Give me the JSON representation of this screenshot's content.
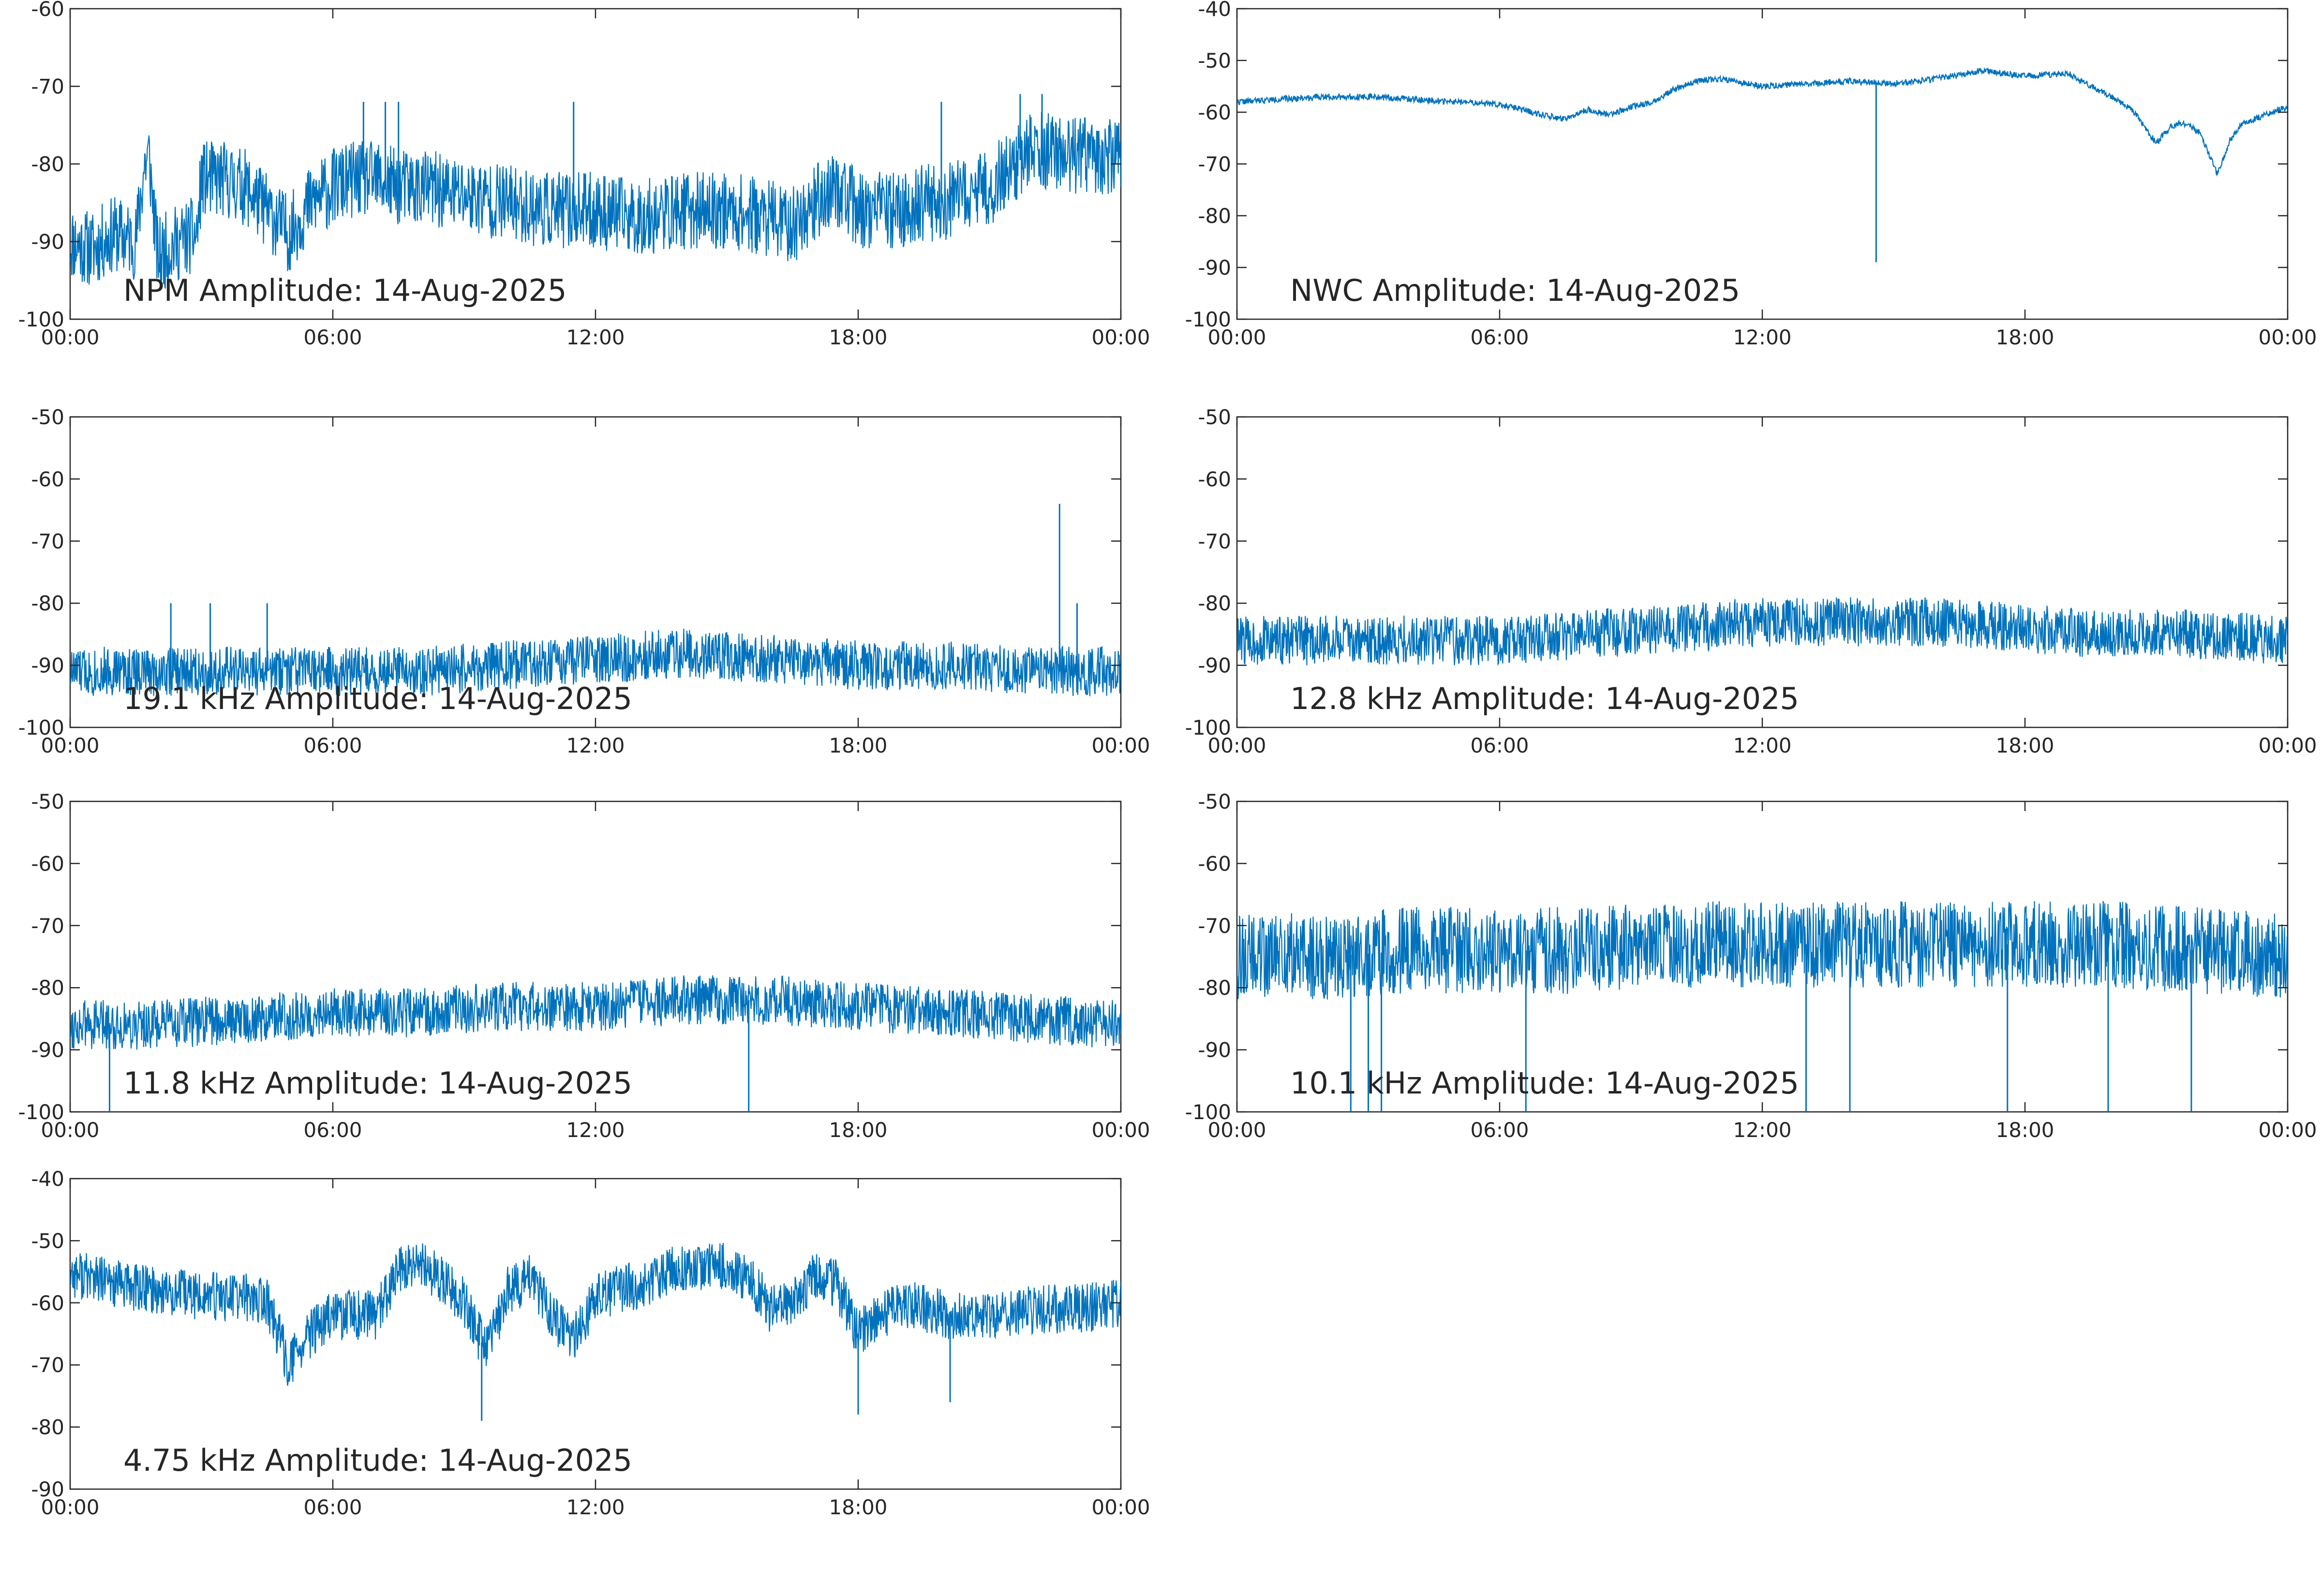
{
  "figure": {
    "background": "#ffffff",
    "line_color": "#0072BD",
    "axis_color": "#262626"
  },
  "chart_data": [
    {
      "type": "line",
      "title": "NPM Amplitude: 14-Aug-2025",
      "xlim": [
        "00:00",
        "24:00"
      ],
      "xticks": [
        "00:00",
        "06:00",
        "12:00",
        "18:00",
        "00:00"
      ],
      "ylim": [
        -100,
        -60
      ],
      "yticks": [
        -60,
        -70,
        -80,
        -90,
        -100
      ],
      "series": [
        {
          "x": [
            0,
            0.5,
            1.0,
            1.5,
            1.7,
            1.8,
            2.0,
            2.2,
            2.5,
            2.9,
            3.0,
            3.5,
            4.0,
            4.5,
            5.0,
            5.5,
            6.0,
            6.5,
            7.0,
            7.5,
            8.0,
            9.0,
            10.0,
            11.0,
            12.0,
            13.0,
            14.0,
            15.0,
            16.0,
            16.5,
            17.0,
            17.5,
            18.0,
            18.5,
            19.0,
            19.5,
            20.0,
            20.5,
            21.0,
            22.0,
            23.0,
            24.0
          ],
          "y": [
            -90,
            -91,
            -89,
            -90,
            -80,
            -79,
            -92,
            -91,
            -90,
            -89,
            -82,
            -82,
            -83,
            -86,
            -89,
            -85,
            -83,
            -82,
            -82,
            -83,
            -83,
            -84,
            -85,
            -86,
            -86,
            -87,
            -86,
            -86,
            -87,
            -88,
            -85,
            -83,
            -86,
            -86,
            -86,
            -85,
            -85,
            -84,
            -83,
            -78,
            -79,
            -79
          ],
          "spread": 5,
          "spike_x": [
            6.7,
            7.2,
            7.5,
            11.5,
            19.9,
            21.7,
            22.2
          ],
          "spike_y": [
            -72,
            -72,
            -72,
            -72,
            -72,
            -71,
            -71
          ],
          "seed": 11
        }
      ]
    },
    {
      "type": "line",
      "title": "NWC Amplitude: 14-Aug-2025",
      "xlim": [
        "00:00",
        "24:00"
      ],
      "xticks": [
        "00:00",
        "06:00",
        "12:00",
        "18:00",
        "00:00"
      ],
      "ylim": [
        -100,
        -40
      ],
      "yticks": [
        -40,
        -50,
        -60,
        -70,
        -80,
        -90,
        -100
      ],
      "series": [
        {
          "x": [
            0,
            1,
            2,
            3,
            4,
            5,
            6,
            6.5,
            7.0,
            7.5,
            8.0,
            8.5,
            9.0,
            9.5,
            10.0,
            10.5,
            11.0,
            12.0,
            13.0,
            14.0,
            15.0,
            16.0,
            17.0,
            18.0,
            19.0,
            19.5,
            20.0,
            20.5,
            21.0,
            21.3,
            21.6,
            22.0,
            22.4,
            22.7,
            23.0,
            23.5,
            24.0
          ],
          "y": [
            -58,
            -57.5,
            -57,
            -57,
            -57.5,
            -58,
            -58.5,
            -59.5,
            -60.5,
            -61.5,
            -59.5,
            -60.5,
            -59,
            -58,
            -55.5,
            -54,
            -53.5,
            -55,
            -54.5,
            -54,
            -54.5,
            -53.5,
            -52,
            -53,
            -52.5,
            -55,
            -57,
            -60,
            -66,
            -63,
            -62,
            -64,
            -72,
            -65,
            -62,
            -60.5,
            -59
          ],
          "spread": 0.6,
          "spike_x": [
            14.6
          ],
          "spike_y": [
            -89
          ],
          "seed": 22
        }
      ]
    },
    {
      "type": "line",
      "title": "19.1 kHz Amplitude: 14-Aug-2025",
      "xlim": [
        "00:00",
        "24:00"
      ],
      "xticks": [
        "00:00",
        "06:00",
        "12:00",
        "18:00",
        "00:00"
      ],
      "ylim": [
        -100,
        -50
      ],
      "yticks": [
        -50,
        -60,
        -70,
        -80,
        -90,
        -100
      ],
      "series": [
        {
          "x": [
            0,
            2,
            4,
            6,
            8,
            10,
            12,
            14,
            16,
            18,
            20,
            22,
            24
          ],
          "y": [
            -91,
            -91,
            -91,
            -91,
            -91,
            -90,
            -89,
            -88,
            -89,
            -90,
            -90,
            -91,
            -91
          ],
          "spread": 4,
          "spike_x": [
            2.3,
            3.2,
            4.5,
            22.6,
            23.0
          ],
          "spike_y": [
            -80,
            -80,
            -80,
            -64,
            -80
          ],
          "seed": 33
        }
      ]
    },
    {
      "type": "line",
      "title": "12.8 kHz Amplitude: 14-Aug-2025",
      "xlim": [
        "00:00",
        "24:00"
      ],
      "xticks": [
        "00:00",
        "06:00",
        "12:00",
        "18:00",
        "00:00"
      ],
      "ylim": [
        -100,
        -50
      ],
      "yticks": [
        -50,
        -60,
        -70,
        -80,
        -90,
        -100
      ],
      "series": [
        {
          "x": [
            0,
            2,
            4,
            6,
            8,
            10,
            12,
            14,
            16,
            18,
            20,
            22,
            24
          ],
          "y": [
            -86,
            -86,
            -86,
            -86,
            -85,
            -84,
            -83,
            -83,
            -83,
            -84,
            -85,
            -85,
            -86
          ],
          "spread": 4,
          "spike_x": [],
          "spike_y": [],
          "seed": 44
        }
      ]
    },
    {
      "type": "line",
      "title": "11.8 kHz Amplitude: 14-Aug-2025",
      "xlim": [
        "00:00",
        "24:00"
      ],
      "xticks": [
        "00:00",
        "06:00",
        "12:00",
        "18:00",
        "00:00"
      ],
      "ylim": [
        -100,
        -50
      ],
      "yticks": [
        -50,
        -60,
        -70,
        -80,
        -90,
        -100
      ],
      "series": [
        {
          "x": [
            0,
            2,
            4,
            6,
            8,
            10,
            12,
            14,
            16,
            18,
            20,
            22,
            24
          ],
          "y": [
            -86,
            -86,
            -85,
            -84,
            -84,
            -83,
            -83,
            -82,
            -82,
            -83,
            -84,
            -85,
            -86
          ],
          "spread": 4,
          "spike_x": [
            0.9,
            15.5
          ],
          "spike_y": [
            -100,
            -100
          ],
          "seed": 55
        }
      ]
    },
    {
      "type": "line",
      "title": "10.1 kHz Amplitude: 14-Aug-2025",
      "xlim": [
        "00:00",
        "24:00"
      ],
      "xticks": [
        "00:00",
        "06:00",
        "12:00",
        "18:00",
        "00:00"
      ],
      "ylim": [
        -100,
        -50
      ],
      "yticks": [
        -50,
        -60,
        -70,
        -80,
        -90,
        -100
      ],
      "series": [
        {
          "x": [
            0,
            2,
            4,
            6,
            8,
            10,
            12,
            14,
            16,
            18,
            20,
            22,
            24
          ],
          "y": [
            -75,
            -75,
            -74,
            -74,
            -74,
            -73,
            -73,
            -73,
            -73,
            -73,
            -73,
            -74,
            -75
          ],
          "spread": 7,
          "spike_x": [
            2.6,
            3.0,
            3.3,
            6.6,
            13.0,
            14.0,
            17.6,
            19.9,
            21.8
          ],
          "spike_y": [
            -100,
            -100,
            -100,
            -100,
            -100,
            -100,
            -100,
            -100,
            -100
          ],
          "seed": 66
        }
      ]
    },
    {
      "type": "line",
      "title": "4.75 kHz Amplitude: 14-Aug-2025",
      "xlim": [
        "00:00",
        "24:00"
      ],
      "xticks": [
        "00:00",
        "06:00",
        "12:00",
        "18:00",
        "00:00"
      ],
      "ylim": [
        -90,
        -40
      ],
      "yticks": [
        -40,
        -50,
        -60,
        -70,
        -80,
        -90
      ],
      "series": [
        {
          "x": [
            0,
            1,
            2,
            3,
            4,
            4.5,
            5.0,
            5.5,
            6.0,
            7.0,
            7.5,
            8.0,
            8.5,
            9.0,
            9.5,
            10.0,
            10.5,
            11.0,
            11.5,
            12.0,
            13.0,
            14.0,
            15.0,
            15.5,
            16.0,
            16.5,
            17.0,
            17.5,
            18.0,
            18.5,
            19.0,
            20.0,
            21.0,
            22.0,
            23.0,
            24.0
          ],
          "y": [
            -55,
            -57,
            -58,
            -59,
            -59,
            -60,
            -70,
            -65,
            -62,
            -62,
            -55,
            -54,
            -56,
            -60,
            -68,
            -58,
            -56,
            -62,
            -66,
            -59,
            -57,
            -54,
            -54,
            -56,
            -61,
            -60,
            -56,
            -57,
            -65,
            -62,
            -60,
            -62,
            -62,
            -61,
            -61,
            -60
          ],
          "spread": 4,
          "spike_x": [
            9.4,
            18.0,
            20.1
          ],
          "spike_y": [
            -79,
            -78,
            -76
          ],
          "seed": 77
        }
      ]
    }
  ]
}
